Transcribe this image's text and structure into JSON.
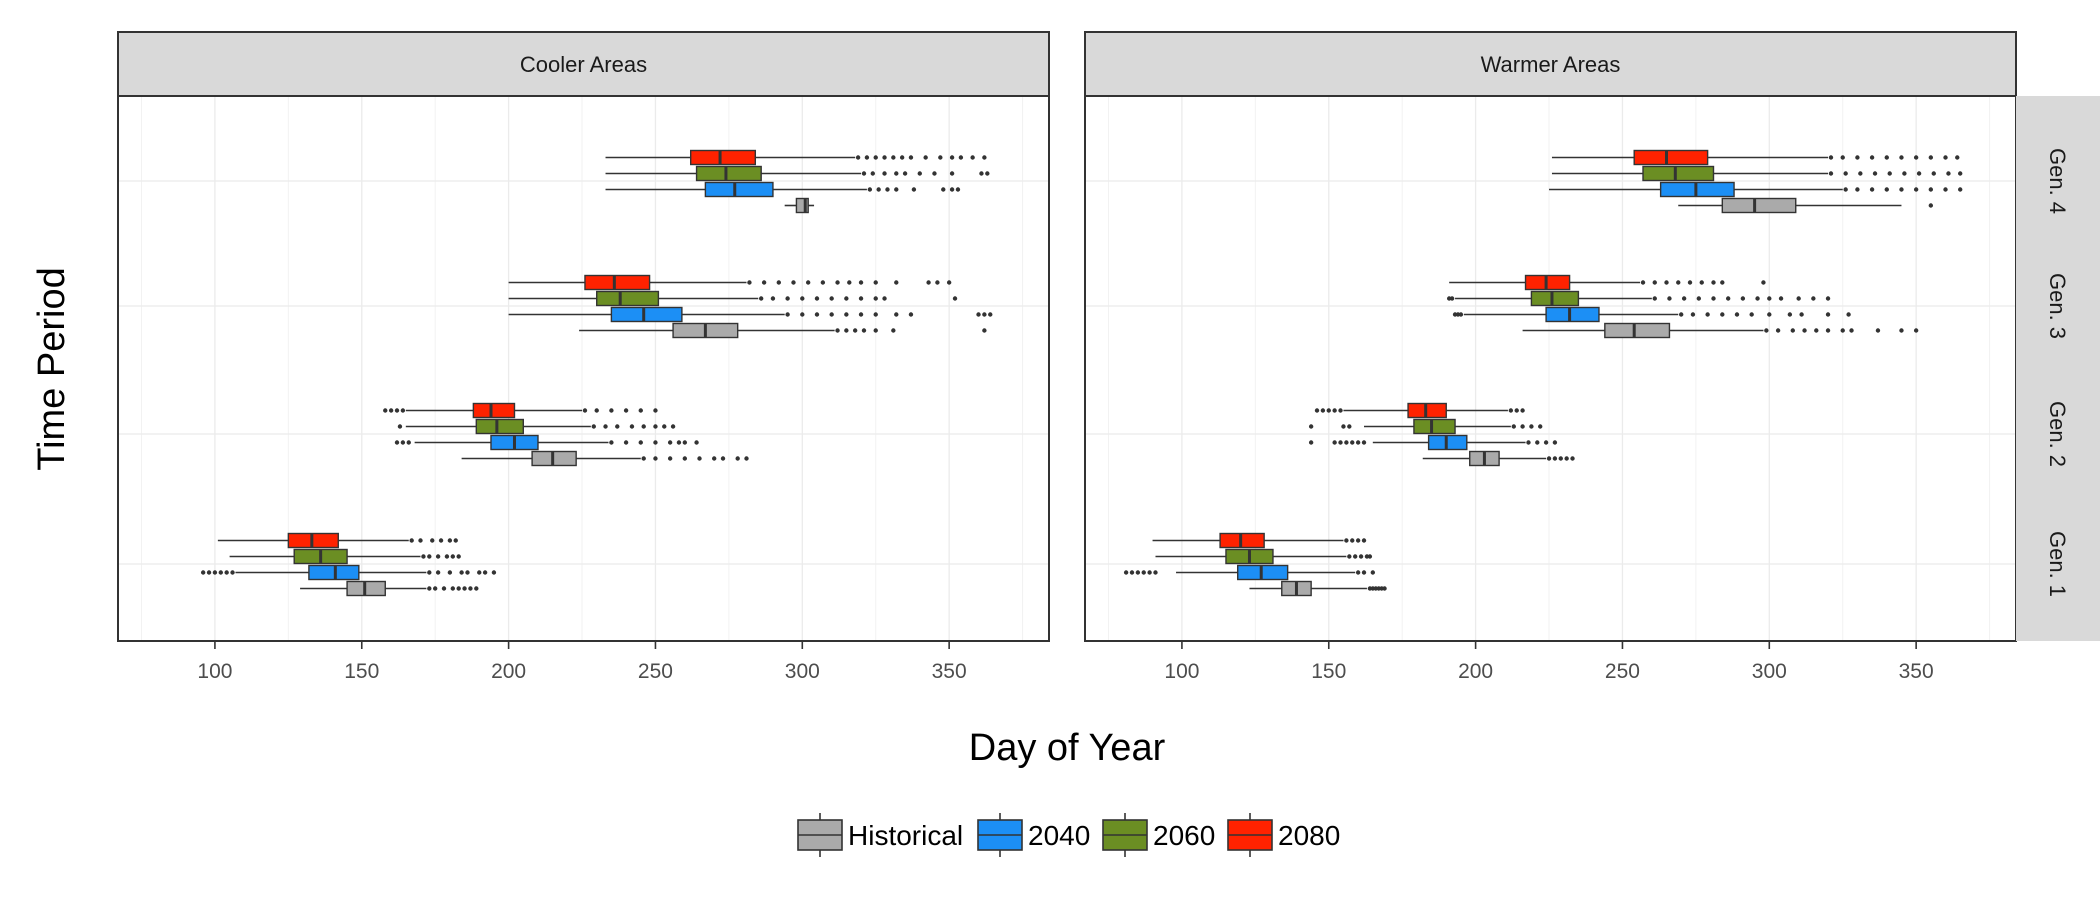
{
  "chart_data": {
    "type": "boxplot",
    "orientation": "horizontal",
    "xlabel": "Day of Year",
    "ylabel": "Time Period",
    "xlim": [
      67,
      384
    ],
    "x_ticks": [
      100,
      150,
      200,
      250,
      300,
      350
    ],
    "facet_columns": [
      "Cooler Areas",
      "Warmer Areas"
    ],
    "facet_rows": [
      "Gen. 4",
      "Gen. 3",
      "Gen. 2",
      "Gen. 1"
    ],
    "series": [
      {
        "name": "Historical",
        "color": "#aaaaaa"
      },
      {
        "name": "2040",
        "color": "#1c8ff5"
      },
      {
        "name": "2060",
        "color": "#6b8e23"
      },
      {
        "name": "2080",
        "color": "#ff2200"
      }
    ],
    "panels": [
      {
        "facet": "Cooler Areas",
        "groups": [
          {
            "label": "Gen. 1",
            "boxes": [
              {
                "series": "Historical",
                "min": 129,
                "q1": 145,
                "median": 151,
                "q3": 158,
                "max": 172,
                "outliers": [
                  173,
                  175,
                  178,
                  181,
                  183,
                  185,
                  187,
                  189
                ]
              },
              {
                "series": "2040",
                "min": 107,
                "q1": 132,
                "median": 141,
                "q3": 149,
                "max": 172,
                "outliers": [
                  96,
                  98,
                  100,
                  102,
                  104,
                  106,
                  173,
                  176,
                  180,
                  184,
                  186,
                  190,
                  192,
                  195
                ]
              },
              {
                "series": "2060",
                "min": 105,
                "q1": 127,
                "median": 136,
                "q3": 145,
                "max": 170,
                "outliers": [
                  171,
                  173,
                  176,
                  179,
                  181,
                  183
                ]
              },
              {
                "series": "2080",
                "min": 101,
                "q1": 125,
                "median": 133,
                "q3": 142,
                "max": 166,
                "outliers": [
                  167,
                  170,
                  174,
                  177,
                  180,
                  182
                ]
              }
            ]
          },
          {
            "label": "Gen. 2",
            "boxes": [
              {
                "series": "Historical",
                "min": 184,
                "q1": 208,
                "median": 215,
                "q3": 223,
                "max": 245,
                "outliers": [
                  246,
                  250,
                  255,
                  260,
                  265,
                  270,
                  273,
                  278,
                  281
                ]
              },
              {
                "series": "2040",
                "min": 168,
                "q1": 194,
                "median": 202,
                "q3": 210,
                "max": 234,
                "outliers": [
                  162,
                  164,
                  166,
                  235,
                  240,
                  245,
                  250,
                  255,
                  258,
                  260,
                  264
                ]
              },
              {
                "series": "2060",
                "min": 165,
                "q1": 189,
                "median": 196,
                "q3": 205,
                "max": 228,
                "outliers": [
                  163,
                  229,
                  233,
                  237,
                  242,
                  246,
                  250,
                  253,
                  256
                ]
              },
              {
                "series": "2080",
                "min": 165,
                "q1": 188,
                "median": 194,
                "q3": 202,
                "max": 225,
                "outliers": [
                  158,
                  160,
                  162,
                  164,
                  226,
                  230,
                  235,
                  240,
                  245,
                  250
                ]
              }
            ]
          },
          {
            "label": "Gen. 3",
            "boxes": [
              {
                "series": "Historical",
                "min": 224,
                "q1": 256,
                "median": 267,
                "q3": 278,
                "max": 311,
                "outliers": [
                  312,
                  315,
                  318,
                  321,
                  325,
                  331,
                  362
                ]
              },
              {
                "series": "2040",
                "min": 200,
                "q1": 235,
                "median": 246,
                "q3": 259,
                "max": 294,
                "outliers": [
                  295,
                  300,
                  305,
                  310,
                  315,
                  320,
                  325,
                  332,
                  337,
                  360,
                  362,
                  364
                ]
              },
              {
                "series": "2060",
                "min": 200,
                "q1": 230,
                "median": 238,
                "q3": 251,
                "max": 285,
                "outliers": [
                  286,
                  290,
                  295,
                  300,
                  305,
                  310,
                  315,
                  320,
                  325,
                  328,
                  352
                ]
              },
              {
                "series": "2080",
                "min": 200,
                "q1": 226,
                "median": 236,
                "q3": 248,
                "max": 281,
                "outliers": [
                  282,
                  287,
                  292,
                  297,
                  302,
                  307,
                  312,
                  316,
                  320,
                  325,
                  332,
                  343,
                  346,
                  350
                ]
              }
            ]
          },
          {
            "label": "Gen. 4",
            "boxes": [
              {
                "series": "Historical",
                "min": 294,
                "q1": 298,
                "median": 301,
                "q3": 302,
                "max": 304,
                "outliers": []
              },
              {
                "series": "2040",
                "min": 233,
                "q1": 267,
                "median": 277,
                "q3": 290,
                "max": 322,
                "outliers": [
                  323,
                  326,
                  329,
                  332,
                  338,
                  348,
                  351,
                  353
                ]
              },
              {
                "series": "2060",
                "min": 233,
                "q1": 264,
                "median": 274,
                "q3": 286,
                "max": 320,
                "outliers": [
                  321,
                  324,
                  328,
                  332,
                  335,
                  340,
                  345,
                  351,
                  361,
                  363
                ]
              },
              {
                "series": "2080",
                "min": 233,
                "q1": 262,
                "median": 272,
                "q3": 284,
                "max": 318,
                "outliers": [
                  319,
                  322,
                  325,
                  328,
                  331,
                  334,
                  337,
                  342,
                  347,
                  351,
                  354,
                  358,
                  362
                ]
              }
            ]
          }
        ]
      },
      {
        "facet": "Warmer Areas",
        "groups": [
          {
            "label": "Gen. 1",
            "boxes": [
              {
                "series": "Historical",
                "min": 123,
                "q1": 134,
                "median": 139,
                "q3": 144,
                "max": 163,
                "outliers": [
                  164,
                  165,
                  166,
                  167,
                  168,
                  169
                ]
              },
              {
                "series": "2040",
                "min": 98,
                "q1": 119,
                "median": 127,
                "q3": 136,
                "max": 159,
                "outliers": [
                  81,
                  83,
                  85,
                  87,
                  89,
                  91,
                  160,
                  162,
                  165
                ]
              },
              {
                "series": "2060",
                "min": 91,
                "q1": 115,
                "median": 123,
                "q3": 131,
                "max": 156,
                "outliers": [
                  157,
                  159,
                  161,
                  163,
                  164
                ]
              },
              {
                "series": "2080",
                "min": 90,
                "q1": 113,
                "median": 120,
                "q3": 128,
                "max": 155,
                "outliers": [
                  156,
                  158,
                  160,
                  162
                ]
              }
            ]
          },
          {
            "label": "Gen. 2",
            "boxes": [
              {
                "series": "Historical",
                "min": 182,
                "q1": 198,
                "median": 203,
                "q3": 208,
                "max": 224,
                "outliers": [
                  225,
                  227,
                  229,
                  231,
                  233
                ]
              },
              {
                "series": "2040",
                "min": 165,
                "q1": 184,
                "median": 190,
                "q3": 197,
                "max": 217,
                "outliers": [
                  144,
                  152,
                  154,
                  156,
                  158,
                  160,
                  162,
                  218,
                  221,
                  224,
                  227
                ]
              },
              {
                "series": "2060",
                "min": 162,
                "q1": 179,
                "median": 185,
                "q3": 193,
                "max": 212,
                "outliers": [
                  144,
                  155,
                  157,
                  213,
                  216,
                  219,
                  222
                ]
              },
              {
                "series": "2080",
                "min": 155,
                "q1": 177,
                "median": 183,
                "q3": 190,
                "max": 211,
                "outliers": [
                  146,
                  148,
                  150,
                  152,
                  154,
                  212,
                  214,
                  216
                ]
              }
            ]
          },
          {
            "label": "Gen. 3",
            "boxes": [
              {
                "series": "Historical",
                "min": 216,
                "q1": 244,
                "median": 254,
                "q3": 266,
                "max": 298,
                "outliers": [
                  299,
                  303,
                  308,
                  312,
                  316,
                  320,
                  325,
                  328,
                  337,
                  345,
                  350
                ]
              },
              {
                "series": "2040",
                "min": 196,
                "q1": 224,
                "median": 232,
                "q3": 242,
                "max": 269,
                "outliers": [
                  193,
                  194,
                  195,
                  270,
                  274,
                  279,
                  284,
                  289,
                  294,
                  300,
                  307,
                  311,
                  320,
                  327
                ]
              },
              {
                "series": "2060",
                "min": 193,
                "q1": 219,
                "median": 226,
                "q3": 235,
                "max": 260,
                "outliers": [
                  191,
                  192,
                  261,
                  266,
                  271,
                  276,
                  281,
                  286,
                  291,
                  296,
                  300,
                  304,
                  310,
                  315,
                  320
                ]
              },
              {
                "series": "2080",
                "min": 191,
                "q1": 217,
                "median": 224,
                "q3": 232,
                "max": 256,
                "outliers": [
                  257,
                  261,
                  265,
                  269,
                  273,
                  277,
                  281,
                  284,
                  298
                ]
              }
            ]
          },
          {
            "label": "Gen. 4",
            "boxes": [
              {
                "series": "Historical",
                "min": 269,
                "q1": 284,
                "median": 295,
                "q3": 309,
                "max": 345,
                "outliers": [
                  355
                ]
              },
              {
                "series": "2040",
                "min": 225,
                "q1": 263,
                "median": 275,
                "q3": 288,
                "max": 325,
                "outliers": [
                  326,
                  330,
                  335,
                  340,
                  345,
                  350,
                  355,
                  360,
                  365
                ]
              },
              {
                "series": "2060",
                "min": 226,
                "q1": 257,
                "median": 268,
                "q3": 281,
                "max": 320,
                "outliers": [
                  321,
                  326,
                  331,
                  336,
                  341,
                  346,
                  351,
                  356,
                  361,
                  365
                ]
              },
              {
                "series": "2080",
                "min": 226,
                "q1": 254,
                "median": 265,
                "q3": 279,
                "max": 320,
                "outliers": [
                  321,
                  325,
                  330,
                  335,
                  340,
                  345,
                  350,
                  355,
                  360,
                  364
                ]
              }
            ]
          }
        ]
      }
    ],
    "legend": {
      "position": "bottom",
      "entries": [
        "Historical",
        "2040",
        "2060",
        "2080"
      ]
    },
    "grid": true
  }
}
